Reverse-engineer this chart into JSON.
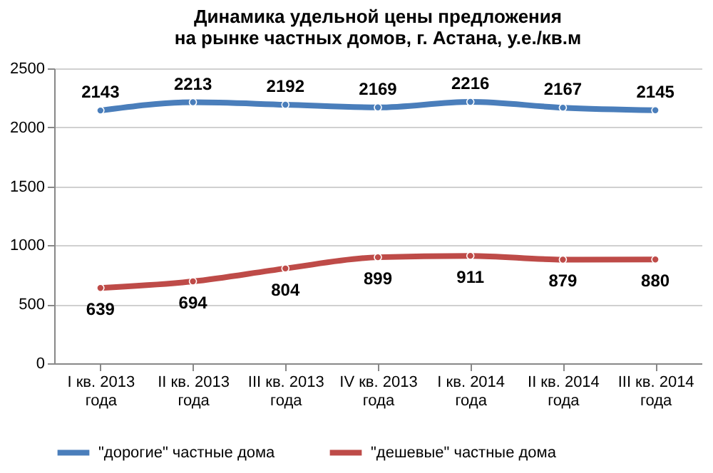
{
  "chart_data": {
    "type": "line",
    "title": "Динамика удельной цены предложения на рынке частных домов, г. Астана, у.е./кв.м",
    "categories": [
      "I кв. 2013 года",
      "II кв. 2013 года",
      "III кв. 2013 года",
      "IV кв. 2013 года",
      "I кв. 2014 года",
      "II кв. 2014 года",
      "III кв. 2014 года"
    ],
    "series": [
      {
        "name": "\"дорогие\" частные дома",
        "color": "#4a7ebb",
        "values": [
          2143,
          2213,
          2192,
          2169,
          2216,
          2167,
          2145
        ]
      },
      {
        "name": "\"дешевые\" частные дома",
        "color": "#be4b48",
        "values": [
          639,
          694,
          804,
          899,
          911,
          879,
          880
        ]
      }
    ],
    "ylim": [
      0,
      2500
    ],
    "yticks": [
      0,
      500,
      1000,
      1500,
      2000,
      2500
    ],
    "grid": "y",
    "legend": "bottom",
    "marker": "circle",
    "line_style": "solid",
    "data_labels": true
  }
}
